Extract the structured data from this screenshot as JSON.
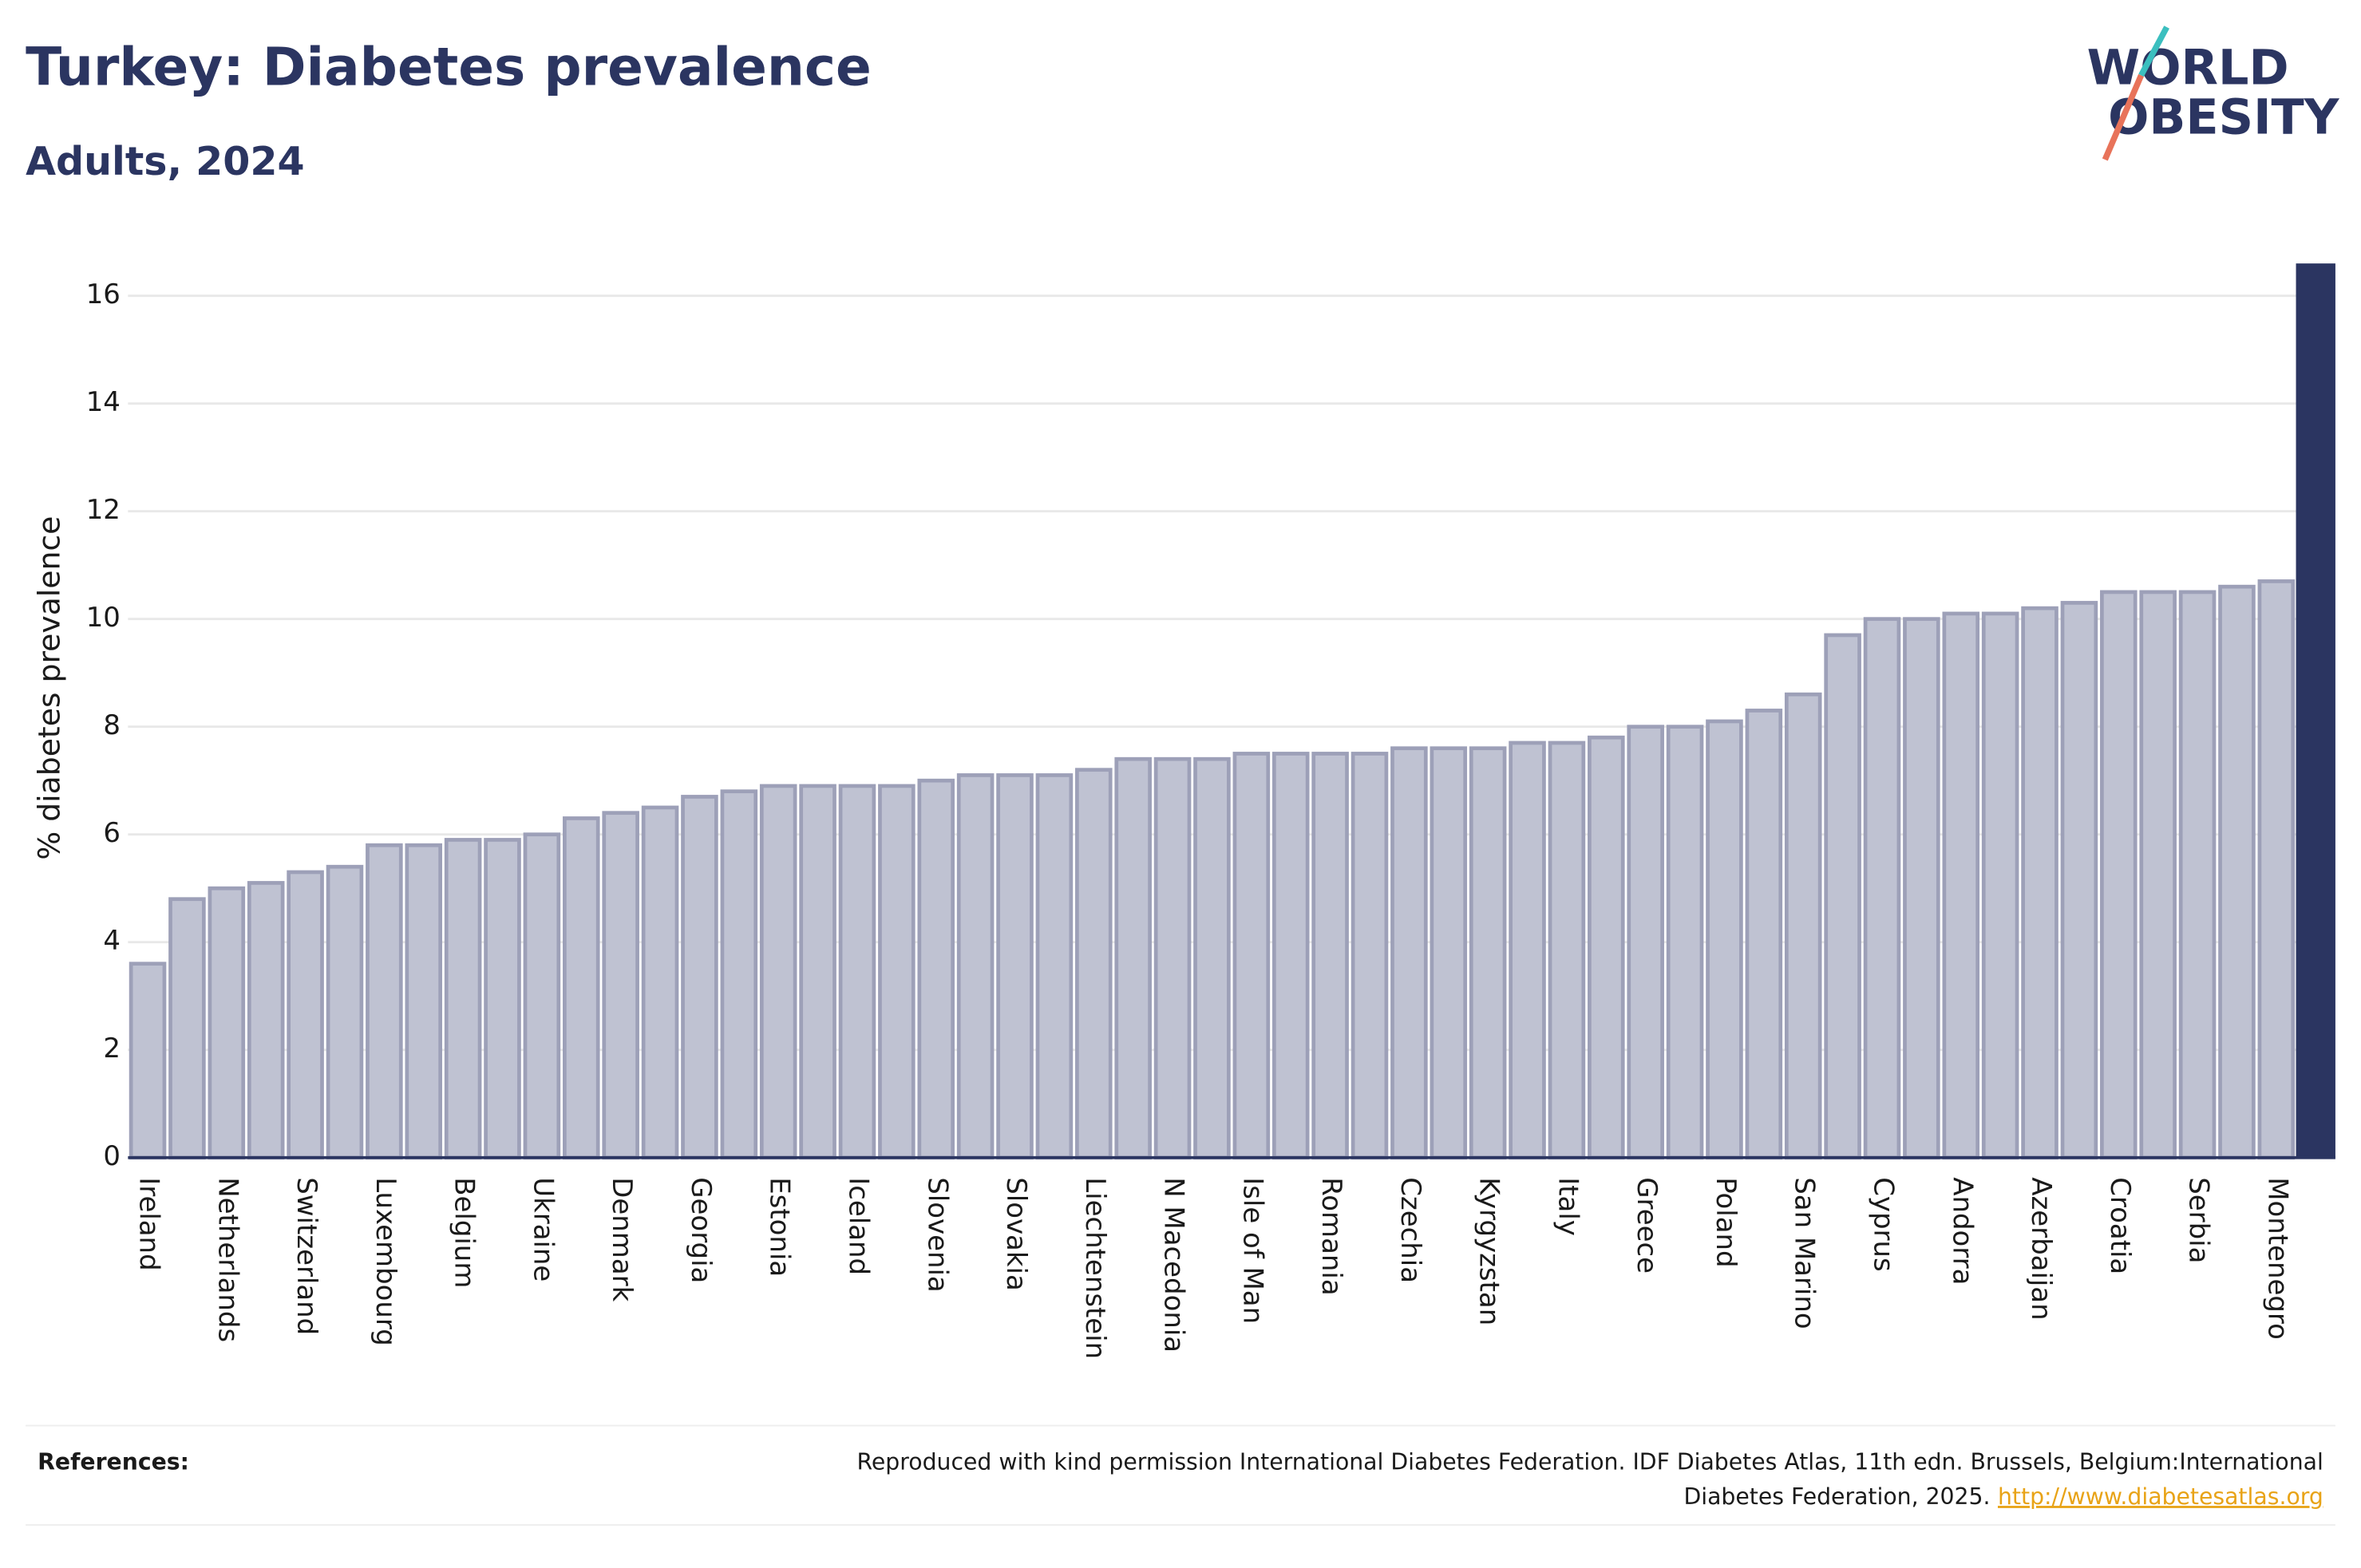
{
  "title": "Turkey: Diabetes prevalence",
  "subtitle": "Adults, 2024",
  "logo": {
    "line1": "WORLD",
    "line2": "OBESITY"
  },
  "chart_data": {
    "type": "bar",
    "ylabel": "% diabetes prevalence",
    "categories": [
      "Ireland",
      null,
      "Netherlands",
      null,
      "Switzerland",
      null,
      "Luxembourg",
      null,
      "Belgium",
      null,
      "Ukraine",
      null,
      "Denmark",
      null,
      "Georgia",
      null,
      "Estonia",
      null,
      "Iceland",
      null,
      "Slovenia",
      null,
      "Slovakia",
      null,
      "Liechtenstein",
      null,
      "N Macedonia",
      null,
      "Isle of Man",
      null,
      "Romania",
      null,
      "Czechia",
      null,
      "Kyrgyzstan",
      null,
      "Italy",
      null,
      "Greece",
      null,
      "Poland",
      null,
      "San Marino",
      null,
      "Cyprus",
      null,
      "Andorra",
      null,
      "Azerbaijan",
      null,
      "Croatia",
      null,
      "Serbia",
      null,
      "Montenegro",
      null
    ],
    "values": [
      3.6,
      4.8,
      5.0,
      5.1,
      5.3,
      5.4,
      5.8,
      5.8,
      5.9,
      5.9,
      6.0,
      6.3,
      6.4,
      6.5,
      6.7,
      6.8,
      6.9,
      6.9,
      6.9,
      6.9,
      7.0,
      7.1,
      7.1,
      7.1,
      7.2,
      7.4,
      7.4,
      7.4,
      7.5,
      7.5,
      7.5,
      7.5,
      7.6,
      7.6,
      7.6,
      7.7,
      7.7,
      7.8,
      8.0,
      8.0,
      8.1,
      8.3,
      8.6,
      9.7,
      10.0,
      10.0,
      10.1,
      10.1,
      10.2,
      10.3,
      10.5,
      10.5,
      10.5,
      10.6,
      10.7,
      16.6
    ],
    "colors": [
      "#bfc2d2",
      "#bfc2d2",
      "#bfc2d2",
      "#bfc2d2",
      "#bfc2d2",
      "#bfc2d2",
      "#bfc2d2",
      "#bfc2d2",
      "#bfc2d2",
      "#bfc2d2",
      "#bfc2d2",
      "#bfc2d2",
      "#bfc2d2",
      "#bfc2d2",
      "#bfc2d2",
      "#bfc2d2",
      "#bfc2d2",
      "#bfc2d2",
      "#bfc2d2",
      "#bfc2d2",
      "#bfc2d2",
      "#bfc2d2",
      "#bfc2d2",
      "#bfc2d2",
      "#bfc2d2",
      "#bfc2d2",
      "#bfc2d2",
      "#bfc2d2",
      "#bfc2d2",
      "#bfc2d2",
      "#bfc2d2",
      "#bfc2d2",
      "#bfc2d2",
      "#bfc2d2",
      "#bfc2d2",
      "#bfc2d2",
      "#bfc2d2",
      "#bfc2d2",
      "#bfc2d2",
      "#bfc2d2",
      "#bfc2d2",
      "#bfc2d2",
      "#bfc2d2",
      "#bfc2d2",
      "#bfc2d2",
      "#bfc2d2",
      "#bfc2d2",
      "#bfc2d2",
      "#bfc2d2",
      "#bfc2d2",
      "#bfc2d2",
      "#bfc2d2",
      "#bfc2d2",
      "#bfc2d2",
      "#bfc2d2",
      "#2b3561"
    ],
    "ylim": [
      0,
      16.6
    ],
    "yticks": [
      0,
      2,
      4,
      6,
      8,
      10,
      12,
      14,
      16
    ],
    "grid": true
  },
  "references": {
    "label": "References:",
    "lines": [
      "Reproduced with kind permission International Diabetes Federation. IDF Diabetes Atlas, 11th edn. Brussels, Belgium:International",
      "Diabetes Federation, 2025."
    ],
    "link": "http://www.diabetesatlas.org"
  }
}
